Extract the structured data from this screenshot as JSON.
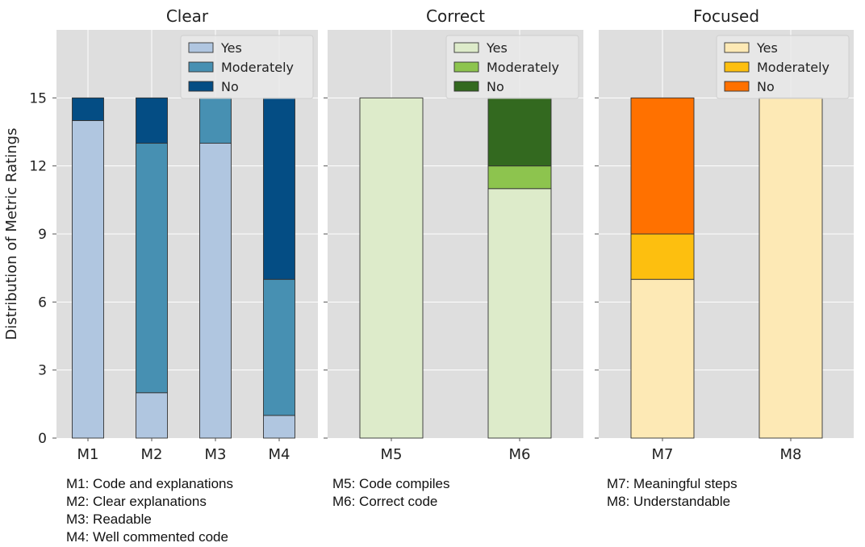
{
  "chart_data": {
    "type": "bar",
    "stacked": true,
    "ylabel": "Distribution of Metric Ratings",
    "ylim": [
      0,
      18
    ],
    "yticks": [
      0,
      3,
      6,
      9,
      12,
      15
    ],
    "grid": true,
    "legend_position": "top-right",
    "panels": [
      {
        "title": "Clear",
        "categories": [
          "M1",
          "M2",
          "M3",
          "M4"
        ],
        "series": [
          {
            "name": "Yes",
            "color": "#b0c6e0",
            "values": [
              14,
              2,
              13,
              1
            ]
          },
          {
            "name": "Moderately",
            "color": "#4790b2",
            "values": [
              0,
              11,
              2,
              6
            ]
          },
          {
            "name": "No",
            "color": "#044d84",
            "values": [
              1,
              2,
              0,
              8
            ]
          }
        ]
      },
      {
        "title": "Correct",
        "categories": [
          "M5",
          "M6"
        ],
        "series": [
          {
            "name": "Yes",
            "color": "#ddebca",
            "values": [
              15,
              11
            ]
          },
          {
            "name": "Moderately",
            "color": "#8dc44e",
            "values": [
              0,
              1
            ]
          },
          {
            "name": "No",
            "color": "#33691f",
            "values": [
              0,
              3
            ]
          }
        ]
      },
      {
        "title": "Focused",
        "categories": [
          "M7",
          "M8"
        ],
        "series": [
          {
            "name": "Yes",
            "color": "#fde9b5",
            "values": [
              7,
              15
            ]
          },
          {
            "name": "Moderately",
            "color": "#fdbf0f",
            "values": [
              2,
              0
            ]
          },
          {
            "name": "No",
            "color": "#ff7100",
            "values": [
              6,
              0
            ]
          }
        ]
      }
    ]
  },
  "captions": [
    [
      "M1: Code and explanations",
      "M2: Clear explanations",
      "M3: Readable",
      "M4: Well commented code"
    ],
    [
      "M5: Code compiles",
      "M6: Correct code"
    ],
    [
      "M7: Meaningful steps",
      "M8: Understandable"
    ]
  ]
}
